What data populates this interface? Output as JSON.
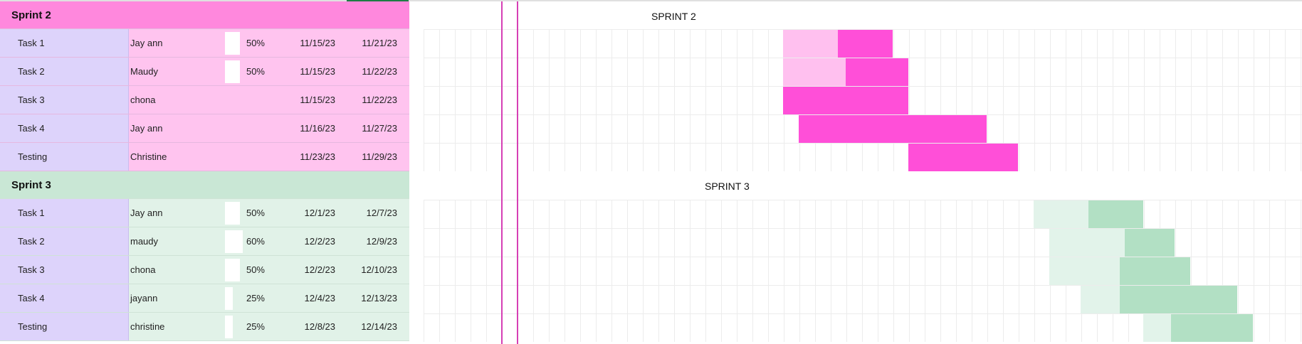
{
  "colors": {
    "sprint2_header": "#ff88dd",
    "sprint2_cell": "#ffc4ef",
    "sprint2_done": "#ffc0ef",
    "sprint2_bar": "#ff4fd8",
    "sprint3_header": "#c9e7d5",
    "sprint3_cell": "#e1f2e8",
    "sprint3_done": "#e2f3ea",
    "sprint3_bar": "#b2e0c4",
    "task_col": "#ddd3fb",
    "marker": "#d63fb5"
  },
  "sprints": [
    {
      "title": "Sprint 2",
      "chart_title": "SPRINT 2",
      "tasks": [
        {
          "task": "Task 1",
          "owner": "Jay ann",
          "progress": "50%",
          "progress_fraction": 0.5,
          "start": "11/15/23",
          "end": "11/21/23"
        },
        {
          "task": "Task 2",
          "owner": "Maudy",
          "progress": "50%",
          "progress_fraction": 0.5,
          "start": "11/15/23",
          "end": "11/22/23"
        },
        {
          "task": "Task 3",
          "owner": "chona",
          "progress": "",
          "progress_fraction": 0,
          "start": "11/15/23",
          "end": "11/22/23"
        },
        {
          "task": "Task 4",
          "owner": "Jay ann",
          "progress": "",
          "progress_fraction": 0,
          "start": "11/16/23",
          "end": "11/27/23"
        },
        {
          "task": "Testing",
          "owner": "Christine",
          "progress": "",
          "progress_fraction": 0,
          "start": "11/23/23",
          "end": "11/29/23"
        }
      ]
    },
    {
      "title": "Sprint 3",
      "chart_title": "SPRINT 3",
      "tasks": [
        {
          "task": "Task 1",
          "owner": "Jay ann",
          "progress": "50%",
          "progress_fraction": 0.5,
          "start": "12/1/23",
          "end": "12/7/23"
        },
        {
          "task": "Task 2",
          "owner": "maudy",
          "progress": "60%",
          "progress_fraction": 0.6,
          "start": "12/2/23",
          "end": "12/9/23"
        },
        {
          "task": "Task 3",
          "owner": "chona",
          "progress": "50%",
          "progress_fraction": 0.5,
          "start": "12/2/23",
          "end": "12/10/23"
        },
        {
          "task": "Task 4",
          "owner": "jayann",
          "progress": "25%",
          "progress_fraction": 0.25,
          "start": "12/4/23",
          "end": "12/13/23"
        },
        {
          "task": "Testing",
          "owner": "christine",
          "progress": "25%",
          "progress_fraction": 0.25,
          "start": "12/8/23",
          "end": "12/14/23"
        }
      ]
    }
  ]
}
